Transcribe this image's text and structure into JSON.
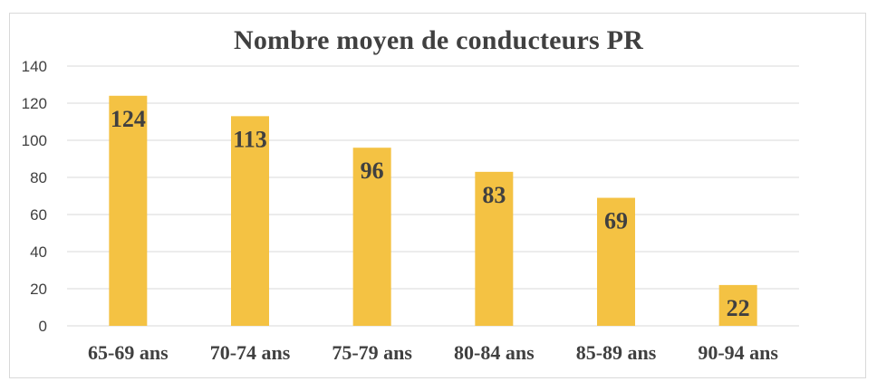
{
  "chart_data": {
    "type": "bar",
    "title": "Nombre moyen de conducteurs PR",
    "xlabel": "",
    "ylabel": "",
    "categories": [
      "65-69 ans",
      "70-74 ans",
      "75-79 ans",
      "80-84 ans",
      "85-89 ans",
      "90-94 ans"
    ],
    "series": [
      {
        "values": [
          124,
          113,
          96,
          83,
          69,
          22
        ],
        "color": "#F4C243"
      }
    ],
    "data_labels": [
      "124",
      "113",
      "96",
      "83",
      "69",
      "22"
    ],
    "ylim": [
      0,
      140
    ],
    "yticks": [
      0,
      20,
      40,
      60,
      80,
      100,
      120,
      140
    ],
    "grid": true,
    "gridline_color": "#d9d9d9",
    "legend": "none"
  }
}
